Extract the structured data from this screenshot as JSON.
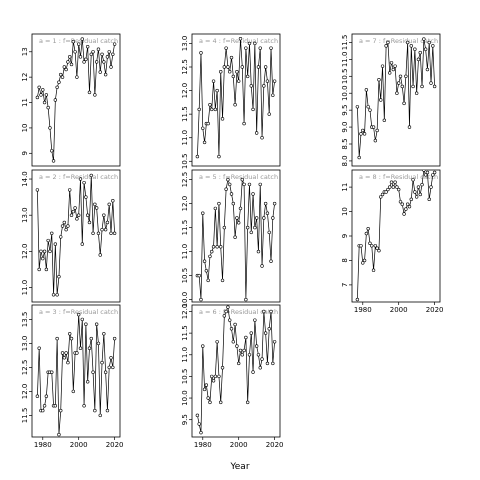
{
  "chart_data": {
    "type": "line",
    "xlabel": "Year",
    "color": "#000000",
    "x": [
      1977,
      1978,
      1979,
      1980,
      1981,
      1982,
      1983,
      1984,
      1985,
      1986,
      1987,
      1988,
      1989,
      1990,
      1991,
      1992,
      1993,
      1994,
      1995,
      1996,
      1997,
      1998,
      1999,
      2000,
      2001,
      2002,
      2003,
      2004,
      2005,
      2006,
      2007,
      2008,
      2009,
      2010,
      2011,
      2012,
      2013,
      2014,
      2015,
      2016,
      2017,
      2018,
      2019,
      2020
    ],
    "xlim": [
      1974,
      2023
    ],
    "xticks": [
      1980,
      2000,
      2020
    ],
    "panels": [
      {
        "title": "a = 1 : f=Residual catch",
        "ylim": [
          8.5,
          13.7
        ],
        "yticks": [
          9,
          10,
          11,
          12,
          13
        ],
        "values": [
          11.2,
          11.6,
          11.3,
          11.5,
          11.0,
          11.3,
          10.8,
          10.0,
          9.1,
          8.7,
          11.1,
          11.6,
          11.8,
          12.1,
          12.0,
          12.4,
          12.3,
          12.6,
          12.8,
          12.5,
          13.4,
          13.0,
          12.0,
          13.3,
          12.8,
          13.5,
          12.6,
          12.7,
          13.2,
          11.4,
          12.9,
          13.0,
          11.3,
          12.6,
          13.1,
          12.2,
          12.9,
          12.6,
          12.1,
          12.8,
          13.0,
          12.4,
          12.9,
          13.3
        ]
      },
      {
        "title": "a = 2 : f=Residual catch",
        "ylim": [
          10.6,
          14.25
        ],
        "yticks": [
          {
            "value": 11,
            "label": "11.0"
          },
          {
            "value": 12,
            "label": "12.0"
          },
          {
            "value": 13,
            "label": "13.0"
          },
          {
            "value": 14,
            "label": "14.0"
          }
        ],
        "values": [
          13.7,
          11.5,
          12.0,
          11.8,
          12.0,
          11.5,
          12.3,
          12.0,
          12.5,
          10.8,
          12.2,
          10.8,
          11.3,
          12.4,
          12.7,
          12.8,
          12.6,
          12.7,
          13.7,
          13.0,
          13.1,
          13.2,
          12.9,
          13.0,
          14.0,
          12.2,
          13.9,
          13.5,
          13.0,
          12.8,
          14.1,
          12.5,
          13.3,
          13.2,
          12.5,
          11.9,
          12.6,
          13.0,
          12.6,
          12.8,
          13.3,
          12.5,
          13.4,
          12.5
        ]
      },
      {
        "title": "a = 3 : f=Residual catch",
        "ylim": [
          11.05,
          13.8
        ],
        "yticks": [
          11.5,
          {
            "value": 12,
            "label": "12.0"
          },
          12.5,
          {
            "value": 13,
            "label": "13.0"
          },
          13.5
        ],
        "values": [
          11.9,
          12.9,
          11.6,
          11.6,
          11.7,
          11.9,
          12.4,
          12.4,
          12.4,
          11.7,
          11.7,
          13.1,
          11.1,
          11.6,
          12.8,
          12.7,
          12.8,
          12.6,
          13.2,
          13.1,
          12.0,
          12.8,
          12.8,
          13.6,
          12.9,
          13.5,
          11.7,
          13.4,
          12.2,
          12.9,
          13.1,
          12.4,
          11.6,
          13.4,
          13.0,
          11.5,
          12.6,
          13.2,
          12.4,
          11.6,
          12.5,
          12.7,
          12.5,
          13.1
        ]
      },
      {
        "title": "a = 4 : f=Residual catch",
        "ylim": [
          10.4,
          13.2
        ],
        "yticks": [
          10.5,
          {
            "value": 11,
            "label": "11.0"
          },
          11.5,
          {
            "value": 12,
            "label": "12.0"
          },
          12.5,
          {
            "value": 13,
            "label": "13.0"
          }
        ],
        "values": [
          10.6,
          11.6,
          12.8,
          11.2,
          10.9,
          11.3,
          11.3,
          11.7,
          11.6,
          12.2,
          11.6,
          12.0,
          10.6,
          12.4,
          11.4,
          12.5,
          12.9,
          12.5,
          12.4,
          12.7,
          12.3,
          11.7,
          12.4,
          12.2,
          13.1,
          12.5,
          11.3,
          12.9,
          12.3,
          13.0,
          12.1,
          11.6,
          13.0,
          11.1,
          12.5,
          12.9,
          11.0,
          12.1,
          12.5,
          12.2,
          11.5,
          12.9,
          11.9,
          12.2
        ]
      },
      {
        "title": "a = 5 : f=Residual catch",
        "ylim": [
          9.95,
          12.7
        ],
        "yticks": [
          {
            "value": 10,
            "label": "10.0"
          },
          10.5,
          {
            "value": 11,
            "label": "11.0"
          },
          11.5,
          {
            "value": 12,
            "label": "12.0"
          },
          12.5
        ],
        "values": [
          10.5,
          10.5,
          10.0,
          11.8,
          10.8,
          10.6,
          10.4,
          10.9,
          11.0,
          11.1,
          11.9,
          11.1,
          12.0,
          11.1,
          10.4,
          11.5,
          12.3,
          12.5,
          12.4,
          12.2,
          12.0,
          11.3,
          11.7,
          11.6,
          11.9,
          12.5,
          12.4,
          10.0,
          11.5,
          12.4,
          11.4,
          12.2,
          11.5,
          11.7,
          11.0,
          12.4,
          10.7,
          11.7,
          12.0,
          11.8,
          11.4,
          10.8,
          11.7,
          12.0
        ]
      },
      {
        "title": "a = 6 : f=Residual catch",
        "ylim": [
          9.1,
          12.15
        ],
        "yticks": [
          9.5,
          {
            "value": 10,
            "label": "10.0"
          },
          10.5,
          {
            "value": 11,
            "label": "11.0"
          },
          11.5,
          {
            "value": 12,
            "label": "12.0"
          }
        ],
        "values": [
          9.6,
          9.4,
          9.2,
          11.2,
          10.2,
          10.3,
          10.0,
          9.9,
          10.5,
          10.4,
          10.5,
          11.3,
          10.5,
          9.9,
          10.7,
          11.9,
          12.0,
          12.1,
          11.8,
          11.6,
          11.3,
          11.7,
          11.2,
          10.8,
          11.1,
          11.0,
          11.1,
          11.4,
          9.9,
          11.0,
          11.5,
          10.6,
          11.8,
          11.2,
          11.0,
          10.7,
          10.9,
          12.0,
          11.5,
          10.8,
          11.6,
          12.0,
          10.8,
          11.3
        ]
      },
      {
        "title": "a = 7 : f=Residual catch",
        "ylim": [
          7.85,
          11.75
        ],
        "yticks": [
          {
            "value": 8,
            "label": "8.0"
          },
          8.5,
          {
            "value": 9,
            "label": "9.0"
          },
          9.5,
          {
            "value": 10,
            "label": "10.0"
          },
          10.5,
          {
            "value": 11,
            "label": "11.0"
          },
          11.5
        ],
        "values": [
          9.6,
          8.1,
          8.8,
          8.9,
          8.8,
          10.1,
          9.6,
          9.5,
          9.0,
          9.0,
          8.6,
          8.9,
          10.4,
          9.8,
          10.8,
          9.2,
          11.4,
          11.5,
          10.6,
          10.9,
          10.7,
          10.8,
          10.0,
          10.3,
          10.5,
          10.2,
          9.7,
          10.5,
          11.5,
          9.0,
          11.4,
          10.2,
          11.3,
          10.0,
          11.0,
          11.2,
          10.2,
          11.6,
          11.3,
          10.7,
          11.5,
          10.3,
          11.4,
          10.2
        ]
      },
      {
        "title": "a = 8 : f=Residual catch",
        "ylim": [
          6.3,
          11.7
        ],
        "yticks": [
          7,
          8,
          9,
          10,
          11
        ],
        "values": [
          6.4,
          8.6,
          8.6,
          7.9,
          8.0,
          9.1,
          9.3,
          8.7,
          8.6,
          7.6,
          8.6,
          8.5,
          8.4,
          10.6,
          10.7,
          10.8,
          10.8,
          10.9,
          11.0,
          11.2,
          11.0,
          11.2,
          11.0,
          10.9,
          10.4,
          10.3,
          9.9,
          10.1,
          10.3,
          10.2,
          10.5,
          11.3,
          10.8,
          10.6,
          11.0,
          10.7,
          11.1,
          11.7,
          11.5,
          11.6,
          10.5,
          11.0,
          11.5,
          11.6
        ]
      }
    ]
  }
}
